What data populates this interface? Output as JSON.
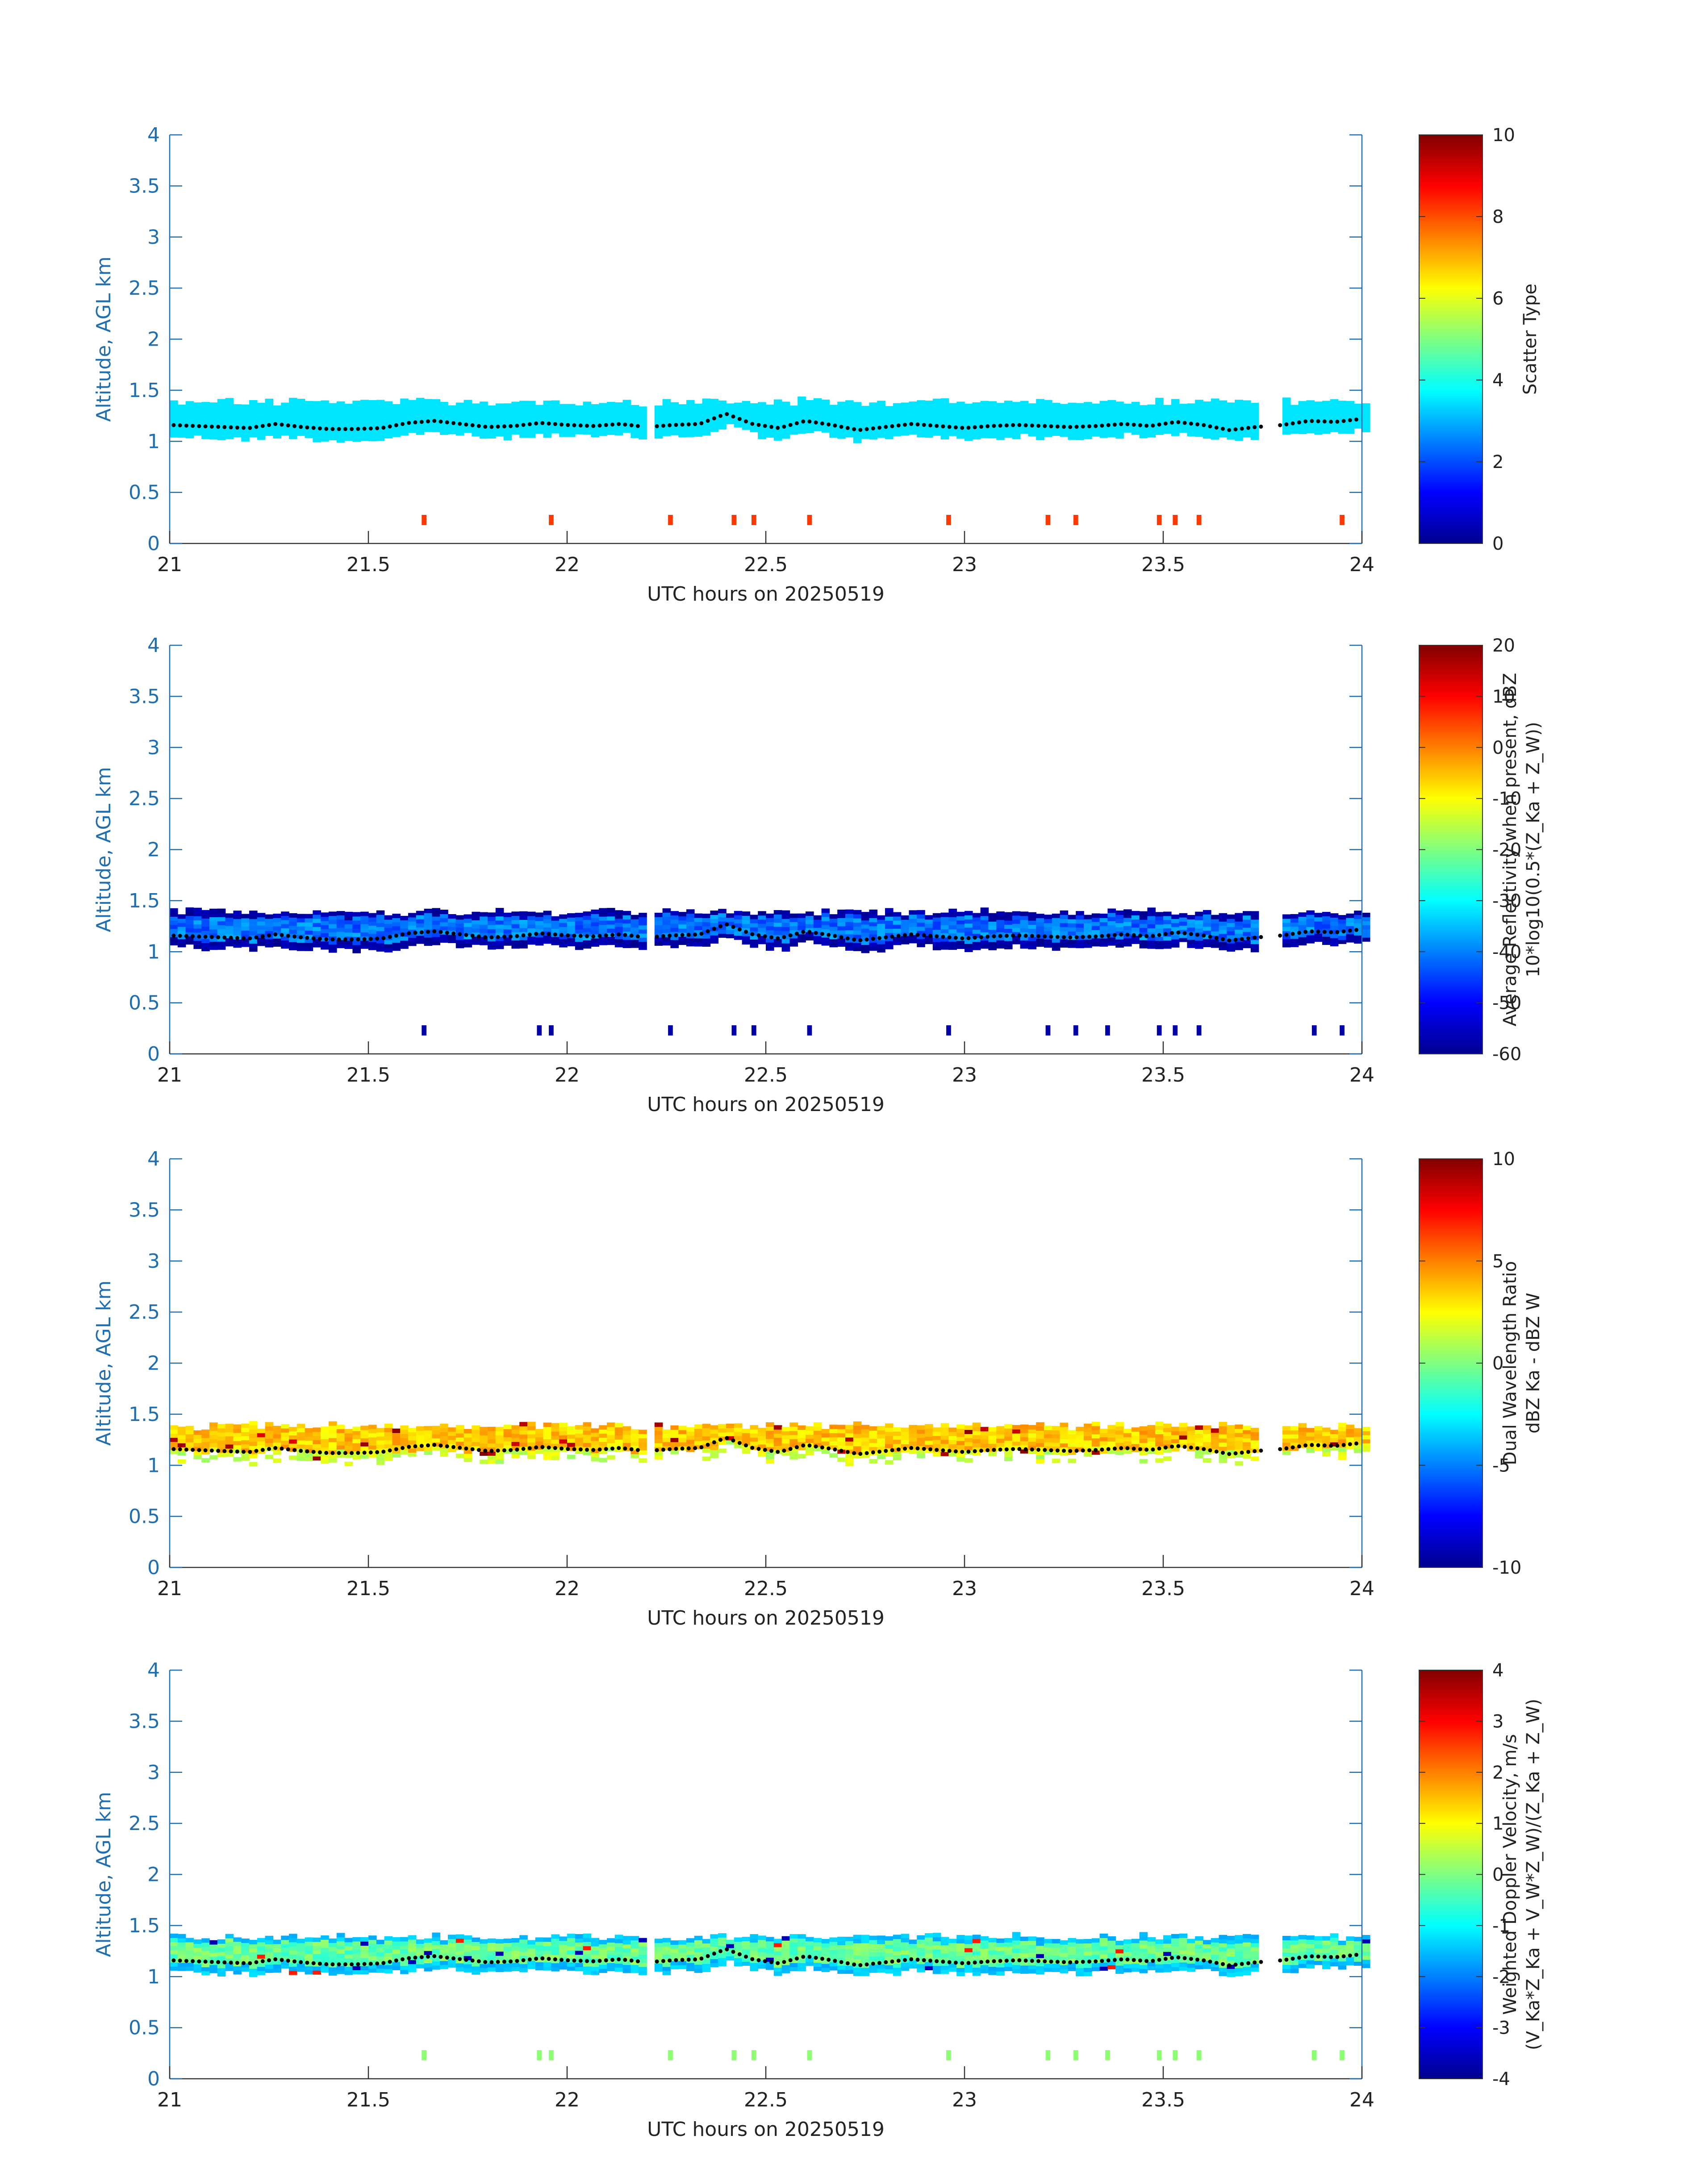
{
  "figure_title": "",
  "chart_data": [
    {
      "type": "heatmap",
      "panel": "scatter-type",
      "xlabel": "UTC hours on 20250519",
      "ylabel": "Altitude, AGL km",
      "xlim": [
        21,
        24
      ],
      "ylim": [
        0,
        4
      ],
      "x_ticks": [
        "21",
        "21.5",
        "22",
        "22.5",
        "23",
        "23.5",
        "24"
      ],
      "y_ticks": [
        "0",
        "0.5",
        "1",
        "1.5",
        "2",
        "2.5",
        "3",
        "3.5",
        "4"
      ],
      "colorbar": {
        "label_lines": [
          "Scatter Type"
        ],
        "range": [
          0,
          10
        ],
        "ticks": [
          "0",
          "2",
          "4",
          "6",
          "8",
          "10"
        ],
        "colormap": "jet"
      },
      "layers": {
        "cloud_band": {
          "altitude_km": [
            1.0,
            1.4
          ],
          "value": 3.5
        },
        "surface_echoes": {
          "altitude_km": [
            0.18,
            0.28
          ],
          "value": 8.2,
          "times": [
            21.64,
            21.96,
            22.26,
            22.42,
            22.47,
            22.61,
            22.96,
            23.21,
            23.28,
            23.49,
            23.53,
            23.59,
            23.95
          ]
        }
      },
      "cloud_base_km": [
        1.16,
        1.15,
        1.14,
        1.13,
        1.17,
        1.14,
        1.12,
        1.12,
        1.13,
        1.18,
        1.2,
        1.17,
        1.14,
        1.15,
        1.18,
        1.16,
        1.15,
        1.17,
        1.14,
        1.16,
        1.17,
        1.27,
        1.17,
        1.13,
        1.2,
        1.16,
        1.11,
        1.14,
        1.17,
        1.15,
        1.13,
        1.15,
        1.16,
        1.15,
        1.14,
        1.15,
        1.17,
        1.15,
        1.19,
        1.16,
        1.11,
        1.14,
        1.16,
        1.2,
        1.19,
        1.22
      ]
    },
    {
      "type": "heatmap",
      "panel": "reflectivity",
      "xlabel": "UTC hours on 20250519",
      "ylabel": "Altitude, AGL km",
      "xlim": [
        21,
        24
      ],
      "ylim": [
        0,
        4
      ],
      "x_ticks": [
        "21",
        "21.5",
        "22",
        "22.5",
        "23",
        "23.5",
        "24"
      ],
      "y_ticks": [
        "0",
        "0.5",
        "1",
        "1.5",
        "2",
        "2.5",
        "3",
        "3.5",
        "4"
      ],
      "colorbar": {
        "label_lines": [
          "Average Reflectivity when present, dBZ",
          "10*log10(0.5*(Z_Ka + Z_W))"
        ],
        "range": [
          -60,
          20
        ],
        "ticks": [
          "-60",
          "-50",
          "-40",
          "-30",
          "-20",
          "-10",
          "0",
          "10",
          "20"
        ],
        "colormap": "jet"
      },
      "layers": {
        "cloud_band": {
          "altitude_km": [
            1.0,
            1.4
          ],
          "edge_value": -55,
          "core_value": -36
        },
        "surface_echoes": {
          "altitude_km": [
            0.18,
            0.28
          ],
          "value": -57,
          "times": [
            21.64,
            21.93,
            21.96,
            22.26,
            22.42,
            22.47,
            22.61,
            22.96,
            23.21,
            23.28,
            23.36,
            23.49,
            23.53,
            23.59,
            23.88,
            23.95
          ]
        }
      }
    },
    {
      "type": "heatmap",
      "panel": "dual-wavelength-ratio",
      "xlabel": "UTC hours on 20250519",
      "ylabel": "Altitude, AGL km",
      "xlim": [
        21,
        24
      ],
      "ylim": [
        0,
        4
      ],
      "x_ticks": [
        "21",
        "21.5",
        "22",
        "22.5",
        "23",
        "23.5",
        "24"
      ],
      "y_ticks": [
        "0",
        "0.5",
        "1",
        "1.5",
        "2",
        "2.5",
        "3",
        "3.5",
        "4"
      ],
      "colorbar": {
        "label_lines": [
          "Dual Wavelength Ratio",
          "dBZ Ka - dBZ W"
        ],
        "range": [
          -10,
          10
        ],
        "ticks": [
          "-10",
          "-5",
          "0",
          "5",
          "10"
        ],
        "colormap": "jet"
      },
      "layers": {
        "cloud_band": {
          "altitude_km": [
            1.05,
            1.4
          ],
          "typical_value": 3.5,
          "edge_value": 0.5
        }
      }
    },
    {
      "type": "heatmap",
      "panel": "doppler-velocity",
      "xlabel": "UTC hours on 20250519",
      "ylabel": "Altitude, AGL km",
      "xlim": [
        21,
        24
      ],
      "ylim": [
        0,
        4
      ],
      "x_ticks": [
        "21",
        "21.5",
        "22",
        "22.5",
        "23",
        "23.5",
        "24"
      ],
      "y_ticks": [
        "0",
        "0.5",
        "1",
        "1.5",
        "2",
        "2.5",
        "3",
        "3.5",
        "4"
      ],
      "colorbar": {
        "label_lines": [
          "Weighted Doppler Velocity, m/s",
          "(V_Ka*Z_Ka + V_W*Z_W)/(Z_Ka + Z_W)"
        ],
        "range": [
          -4,
          4
        ],
        "ticks": [
          "-4",
          "-3",
          "-2",
          "-1",
          "0",
          "1",
          "2",
          "3",
          "4"
        ],
        "colormap": "jet"
      },
      "layers": {
        "cloud_band": {
          "altitude_km": [
            1.0,
            1.4
          ],
          "typical_value": -0.2,
          "edge_value": -1.2
        },
        "surface_echoes": {
          "altitude_km": [
            0.18,
            0.28
          ],
          "value": 0.1,
          "times": [
            21.64,
            21.93,
            21.96,
            22.26,
            22.42,
            22.47,
            22.61,
            22.96,
            23.21,
            23.28,
            23.36,
            23.49,
            23.53,
            23.59,
            23.88,
            23.95
          ]
        }
      }
    }
  ]
}
